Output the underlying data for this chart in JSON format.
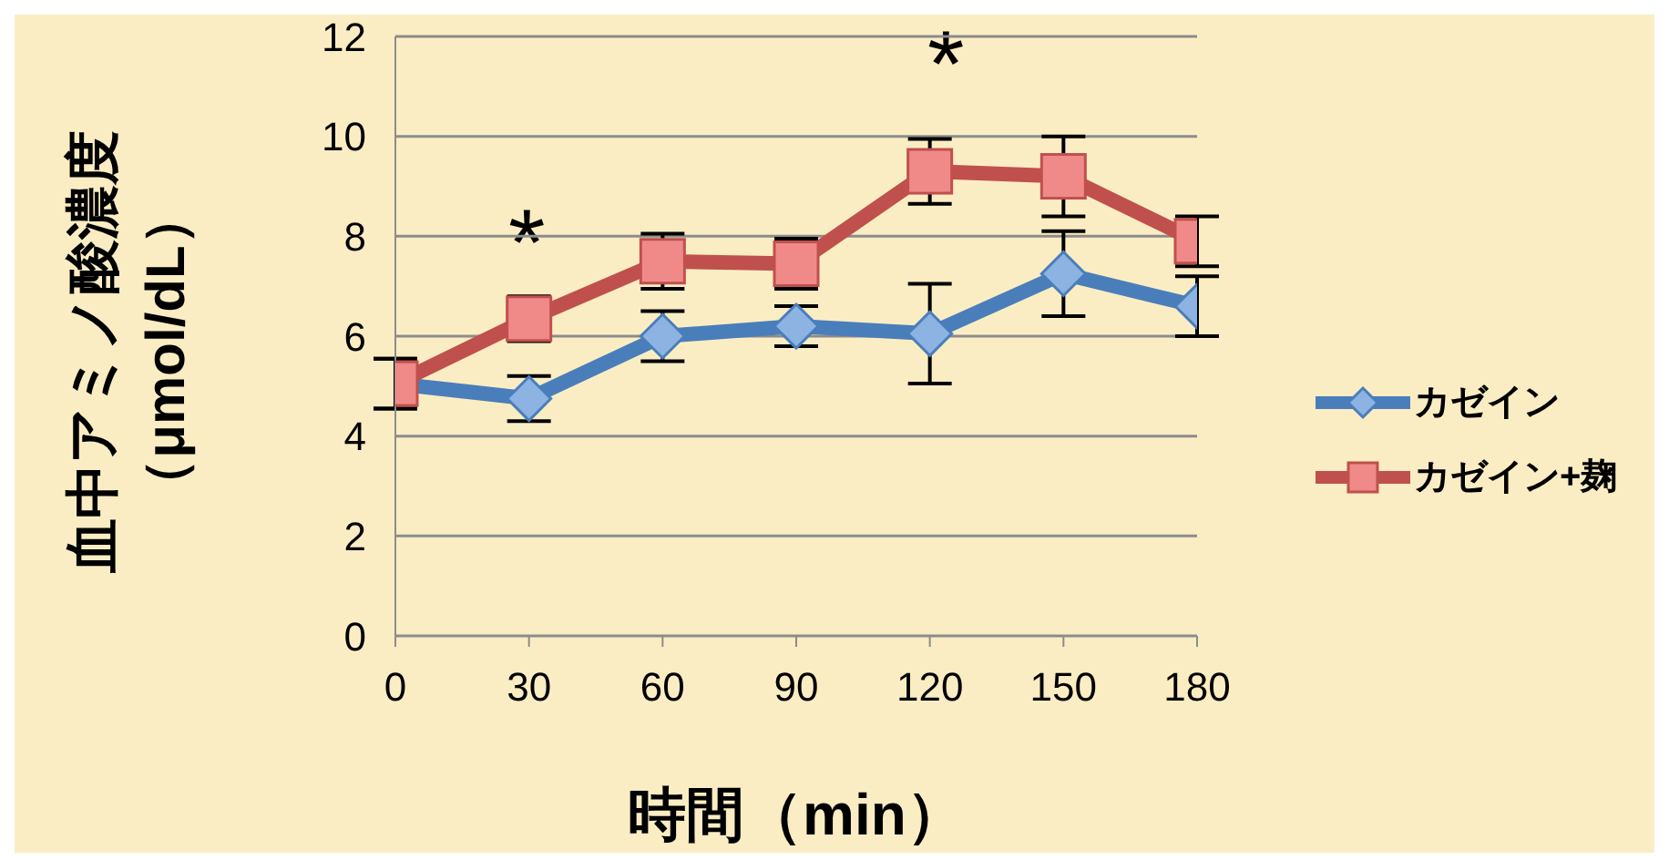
{
  "chart_data": {
    "type": "line",
    "xlabel": "時間（min）",
    "ylabel": "血中アミノ酸濃度（μmol/dL）",
    "x": [
      0,
      30,
      60,
      90,
      120,
      150,
      180
    ],
    "series": [
      {
        "name": "カゼイン",
        "color": "#4a7ebb",
        "marker": "diamond",
        "values": [
          5.05,
          4.75,
          6.0,
          6.2,
          6.05,
          7.25,
          6.6
        ],
        "errors": [
          0.5,
          0.45,
          0.5,
          0.4,
          1.0,
          0.85,
          0.6
        ]
      },
      {
        "name": "カゼイン+麹",
        "color": "#c0504d",
        "marker": "square",
        "values": [
          5.05,
          6.35,
          7.5,
          7.45,
          9.3,
          9.2,
          7.9
        ],
        "errors": [
          0.5,
          0.45,
          0.55,
          0.5,
          0.65,
          0.8,
          0.5
        ]
      }
    ],
    "xlim": [
      0,
      180
    ],
    "xticks": [
      0,
      30,
      60,
      90,
      120,
      150,
      180
    ],
    "ylim": [
      0,
      12
    ],
    "yticks": [
      0,
      2,
      4,
      6,
      8,
      10,
      12
    ],
    "grid": "y",
    "legend": "right",
    "line_style": "solid",
    "annotations": [
      "*",
      "*"
    ]
  }
}
